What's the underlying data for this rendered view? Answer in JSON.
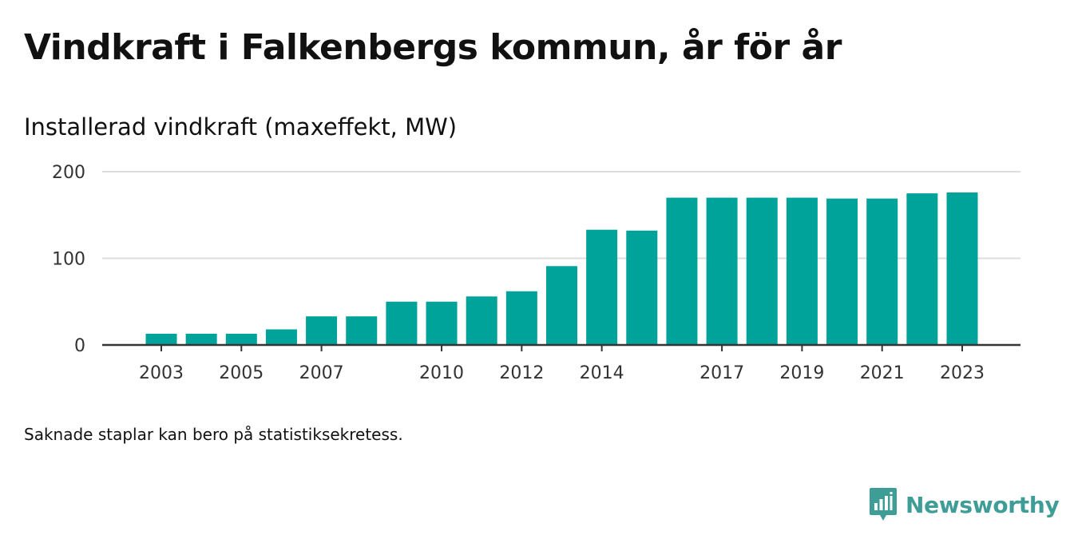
{
  "header": {
    "title": "Vindkraft i Falkenbergs kommun, år för år",
    "subtitle": "Installerad vindkraft (maxeffekt, MW)"
  },
  "footer": {
    "note": "Saknade staplar kan bero på statistiksekretess.",
    "brand": "Newsworthy"
  },
  "colors": {
    "bar": "#00a39a",
    "grid": "#dddddd",
    "axis": "#333333",
    "brand": "#3e9d96"
  },
  "chart_data": {
    "type": "bar",
    "title": "Vindkraft i Falkenbergs kommun, år för år",
    "ylabel": "Installerad vindkraft (maxeffekt, MW)",
    "xlabel": "",
    "ylim": [
      0,
      200
    ],
    "yticks": [
      0,
      100,
      200
    ],
    "grid": true,
    "categories": [
      "2003",
      "2004",
      "2005",
      "2006",
      "2007",
      "2008",
      "2009",
      "2010",
      "2011",
      "2012",
      "2013",
      "2014",
      "2015",
      "2016",
      "2017",
      "2018",
      "2019",
      "2020",
      "2021",
      "2022",
      "2023"
    ],
    "xtick_labels": [
      "2003",
      "2005",
      "2007",
      "2010",
      "2012",
      "2014",
      "2017",
      "2019",
      "2021",
      "2023"
    ],
    "values": [
      13,
      13,
      13,
      18,
      33,
      33,
      50,
      50,
      56,
      62,
      91,
      133,
      132,
      170,
      170,
      170,
      170,
      169,
      169,
      175,
      176
    ]
  }
}
